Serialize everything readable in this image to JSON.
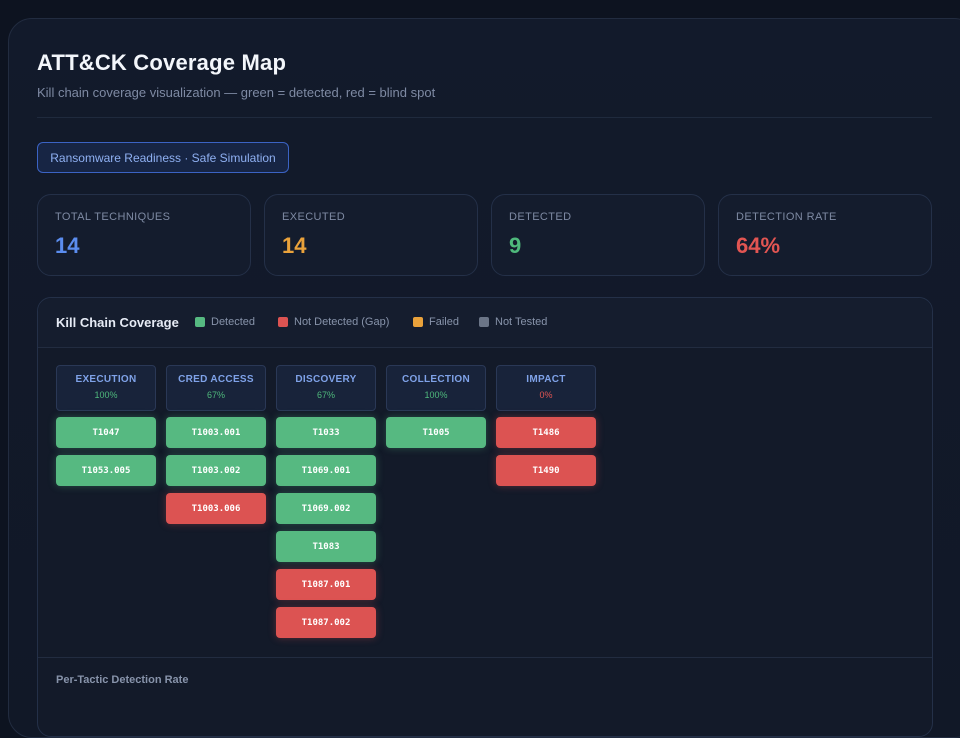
{
  "header": {
    "title": "ATT&CK Coverage Map",
    "subtitle": "Kill chain coverage visualization — green = detected, red = blind spot"
  },
  "badge": {
    "label": "Ransomware Readiness · Safe Simulation"
  },
  "stats": [
    {
      "label": "TOTAL TECHNIQUES",
      "value": "14",
      "color": "#5b8def"
    },
    {
      "label": "EXECUTED",
      "value": "14",
      "color": "#eaa23b"
    },
    {
      "label": "DETECTED",
      "value": "9",
      "color": "#4fb97c"
    },
    {
      "label": "DETECTION RATE",
      "value": "64%",
      "color": "#e25552"
    }
  ],
  "coverage": {
    "title": "Kill Chain Coverage",
    "legend": [
      {
        "label": "Detected",
        "color": "#56b981"
      },
      {
        "label": "Not Detected (Gap)",
        "color": "#dc5352"
      },
      {
        "label": "Failed",
        "color": "#eaa23b"
      },
      {
        "label": "Not Tested",
        "color": "#6b7587"
      }
    ],
    "tactics": [
      {
        "name": "EXECUTION",
        "pct": "100%",
        "pct_color": "#4fb97c",
        "techniques": [
          {
            "id": "T1047",
            "status": "detected"
          },
          {
            "id": "T1053.005",
            "status": "detected"
          }
        ]
      },
      {
        "name": "CRED ACCESS",
        "pct": "67%",
        "pct_color": "#4fb97c",
        "techniques": [
          {
            "id": "T1003.001",
            "status": "detected"
          },
          {
            "id": "T1003.002",
            "status": "detected"
          },
          {
            "id": "T1003.006",
            "status": "gap"
          }
        ]
      },
      {
        "name": "DISCOVERY",
        "pct": "67%",
        "pct_color": "#4fb97c",
        "techniques": [
          {
            "id": "T1033",
            "status": "detected"
          },
          {
            "id": "T1069.001",
            "status": "detected"
          },
          {
            "id": "T1069.002",
            "status": "detected"
          },
          {
            "id": "T1083",
            "status": "detected"
          },
          {
            "id": "T1087.001",
            "status": "gap"
          },
          {
            "id": "T1087.002",
            "status": "gap"
          }
        ]
      },
      {
        "name": "COLLECTION",
        "pct": "100%",
        "pct_color": "#4fb97c",
        "techniques": [
          {
            "id": "T1005",
            "status": "detected"
          }
        ]
      },
      {
        "name": "IMPACT",
        "pct": "0%",
        "pct_color": "#e25552",
        "techniques": [
          {
            "id": "T1486",
            "status": "gap"
          },
          {
            "id": "T1490",
            "status": "gap"
          }
        ]
      }
    ]
  },
  "per_tactic": {
    "title": "Per-Tactic Detection Rate"
  }
}
